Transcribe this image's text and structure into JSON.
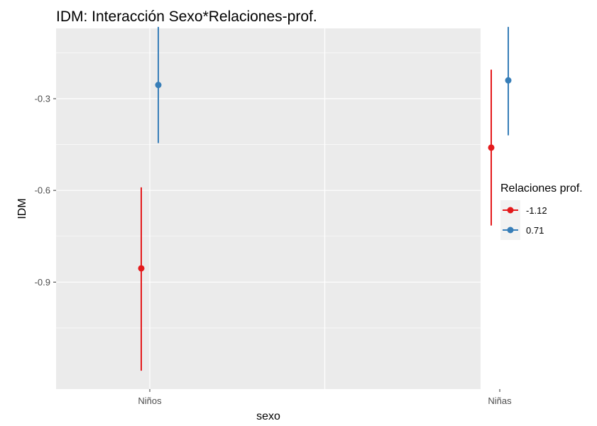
{
  "chart_data": {
    "type": "scatter",
    "title": "IDM: Interacción Sexo*Relaciones-prof.",
    "xlabel": "sexo",
    "ylabel": "IDM",
    "categories": [
      "Niños",
      "Niñas"
    ],
    "y_ticks": [
      -0.9,
      -0.6,
      -0.3
    ],
    "y_tick_labels": [
      "-0.9",
      "-0.6",
      "-0.3"
    ],
    "ylim": [
      -1.25,
      -0.07
    ],
    "grid": true,
    "legend": {
      "title": "Relaciones prof.",
      "placement": "right"
    },
    "series": [
      {
        "name": "-1.12",
        "color": "#e41a1c",
        "values": [
          -0.855,
          -0.46
        ],
        "lower": [
          -1.19,
          -0.715
        ],
        "upper": [
          -0.59,
          -0.205
        ]
      },
      {
        "name": "0.71",
        "color": "#377eb8",
        "values": [
          -0.255,
          -0.24
        ],
        "lower": [
          -0.445,
          -0.42
        ],
        "upper": [
          -0.065,
          -0.065
        ]
      }
    ]
  }
}
